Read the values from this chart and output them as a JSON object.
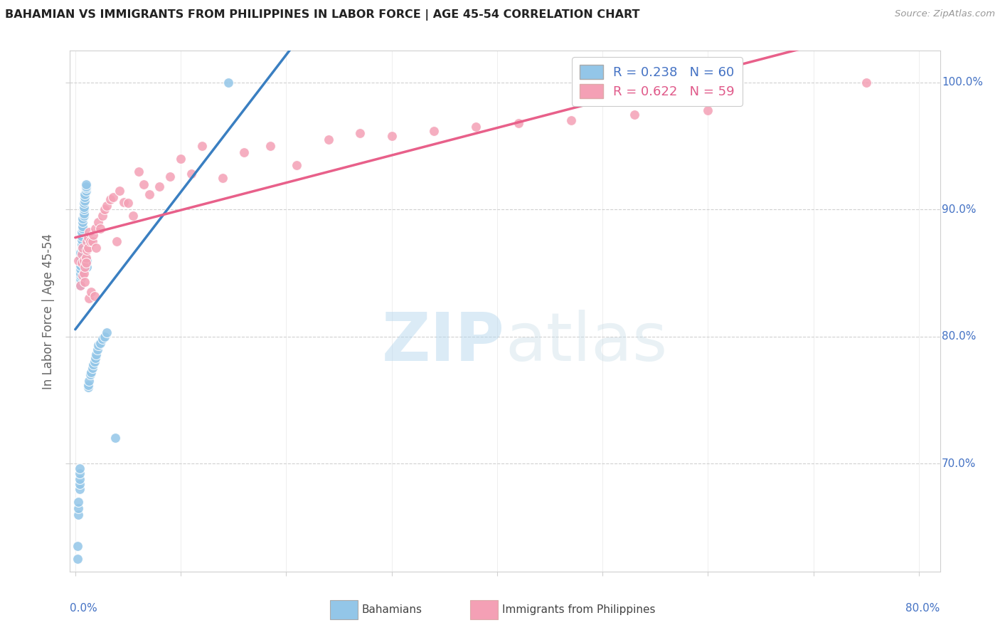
{
  "title": "BAHAMIAN VS IMMIGRANTS FROM PHILIPPINES IN LABOR FORCE | AGE 45-54 CORRELATION CHART",
  "source": "Source: ZipAtlas.com",
  "ylabel": "In Labor Force | Age 45-54",
  "legend_bahamian": "R = 0.238   N = 60",
  "legend_philippines": "R = 0.622   N = 59",
  "legend_label1": "Bahamians",
  "legend_label2": "Immigrants from Philippines",
  "xlim": [
    -0.005,
    0.82
  ],
  "ylim": [
    0.615,
    1.025
  ],
  "blue_color": "#93c6e8",
  "blue_line_color": "#3a7fc1",
  "pink_color": "#f4a0b5",
  "pink_line_color": "#e8608a",
  "grid_color": "#d0d0d0",
  "blue_text_color": "#4472c4",
  "pink_text_color": "#e05a8a",
  "bahamian_x": [
    0.002,
    0.002,
    0.003,
    0.003,
    0.003,
    0.004,
    0.004,
    0.004,
    0.004,
    0.004,
    0.005,
    0.005,
    0.005,
    0.005,
    0.005,
    0.005,
    0.005,
    0.005,
    0.005,
    0.006,
    0.006,
    0.006,
    0.006,
    0.006,
    0.007,
    0.007,
    0.007,
    0.007,
    0.008,
    0.008,
    0.008,
    0.008,
    0.008,
    0.009,
    0.009,
    0.009,
    0.01,
    0.01,
    0.01,
    0.01,
    0.011,
    0.011,
    0.012,
    0.012,
    0.013,
    0.014,
    0.015,
    0.016,
    0.017,
    0.018,
    0.019,
    0.02,
    0.021,
    0.022,
    0.024,
    0.026,
    0.028,
    0.03,
    0.038,
    0.145
  ],
  "bahamian_y": [
    0.625,
    0.635,
    0.66,
    0.665,
    0.67,
    0.68,
    0.684,
    0.688,
    0.692,
    0.696,
    0.84,
    0.845,
    0.848,
    0.85,
    0.853,
    0.856,
    0.86,
    0.863,
    0.866,
    0.87,
    0.873,
    0.876,
    0.879,
    0.882,
    0.885,
    0.887,
    0.89,
    0.893,
    0.895,
    0.897,
    0.9,
    0.902,
    0.905,
    0.907,
    0.91,
    0.912,
    0.915,
    0.917,
    0.918,
    0.92,
    0.855,
    0.86,
    0.76,
    0.762,
    0.765,
    0.77,
    0.772,
    0.775,
    0.778,
    0.78,
    0.783,
    0.786,
    0.79,
    0.793,
    0.795,
    0.798,
    0.8,
    0.803,
    0.72,
    1.0
  ],
  "phil_x": [
    0.003,
    0.005,
    0.006,
    0.006,
    0.007,
    0.007,
    0.008,
    0.008,
    0.009,
    0.009,
    0.01,
    0.01,
    0.011,
    0.011,
    0.012,
    0.012,
    0.013,
    0.013,
    0.014,
    0.015,
    0.016,
    0.017,
    0.018,
    0.019,
    0.02,
    0.022,
    0.024,
    0.026,
    0.028,
    0.03,
    0.033,
    0.036,
    0.039,
    0.042,
    0.046,
    0.05,
    0.055,
    0.06,
    0.065,
    0.07,
    0.08,
    0.09,
    0.1,
    0.11,
    0.12,
    0.14,
    0.16,
    0.185,
    0.21,
    0.24,
    0.27,
    0.3,
    0.34,
    0.38,
    0.42,
    0.47,
    0.53,
    0.6,
    0.75
  ],
  "phil_y": [
    0.86,
    0.84,
    0.858,
    0.865,
    0.848,
    0.87,
    0.85,
    0.86,
    0.843,
    0.855,
    0.862,
    0.858,
    0.868,
    0.875,
    0.87,
    0.878,
    0.83,
    0.882,
    0.875,
    0.835,
    0.875,
    0.88,
    0.832,
    0.885,
    0.87,
    0.89,
    0.885,
    0.895,
    0.9,
    0.903,
    0.908,
    0.91,
    0.875,
    0.915,
    0.906,
    0.905,
    0.895,
    0.93,
    0.92,
    0.912,
    0.918,
    0.926,
    0.94,
    0.928,
    0.95,
    0.925,
    0.945,
    0.95,
    0.935,
    0.955,
    0.96,
    0.958,
    0.962,
    0.965,
    0.968,
    0.97,
    0.975,
    0.978,
    1.0
  ]
}
